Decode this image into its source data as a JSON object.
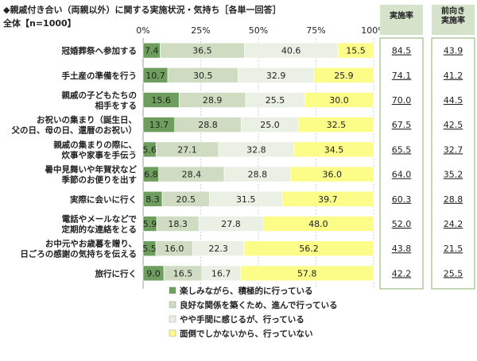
{
  "chart_data": {
    "type": "bar",
    "stacked": true,
    "orientation": "horizontal",
    "title": "◆親戚付き合い（両親以外）に関する実施状況・気持ち［各単一回答］",
    "subtitle": "全体【n=1000】",
    "xlim": [
      0,
      100
    ],
    "x_ticks": [
      "0%",
      "25%",
      "50%",
      "75%",
      "100%"
    ],
    "legend_position": "bottom",
    "categories": [
      "冠婚葬祭へ参加する",
      "手土産の準備を行う",
      "親戚の子どもたちの\n相手をする",
      "お祝いの集まり（誕生日、\n父の日、母の日、還暦のお祝い）",
      "親戚の集まりの際に、\n炊事や家事を手伝う",
      "暑中見舞いや年賀状など\n季節のお便りを出す",
      "実際に会いに行く",
      "電話やメールなどで\n定期的な連絡をとる",
      "お中元やお歳暮を贈り、\n日ごろの感謝の気持ちを伝える",
      "旅行に行く"
    ],
    "series": [
      {
        "name": "楽しみながら、積極的に行っている",
        "color": "#6e9e5e",
        "values": [
          7.4,
          10.7,
          15.6,
          13.7,
          5.6,
          6.8,
          8.3,
          5.9,
          5.5,
          9.0
        ]
      },
      {
        "name": "良好な関係を築くため、進んで行っている",
        "color": "#cfdcc1",
        "values": [
          36.5,
          30.5,
          28.9,
          28.8,
          27.1,
          28.4,
          20.5,
          18.3,
          16.0,
          16.5
        ]
      },
      {
        "name": "やや手間に感じるが、行っている",
        "color": "#ebf0e4",
        "values": [
          40.6,
          32.9,
          25.5,
          25.0,
          32.8,
          28.8,
          31.5,
          27.8,
          22.3,
          16.7
        ]
      },
      {
        "name": "面倒でしかないから、行っていない",
        "color": "#fcfc88",
        "values": [
          15.5,
          25.9,
          30.0,
          32.5,
          34.5,
          36.0,
          39.7,
          48.0,
          56.2,
          57.8
        ]
      }
    ],
    "side_columns": [
      {
        "header": "実施率",
        "values": [
          "84.5",
          "74.1",
          "70.0",
          "67.5",
          "65.5",
          "64.0",
          "60.3",
          "52.0",
          "43.8",
          "42.2"
        ]
      },
      {
        "header": "前向き\n実施率",
        "values": [
          "43.9",
          "41.2",
          "44.5",
          "42.5",
          "32.7",
          "35.2",
          "28.8",
          "24.2",
          "21.5",
          "25.5"
        ]
      }
    ],
    "side_header_color": "#d6e3cb"
  }
}
